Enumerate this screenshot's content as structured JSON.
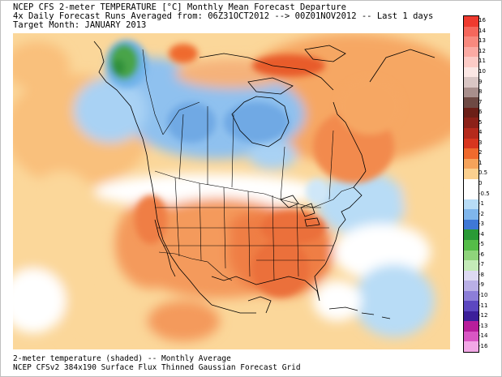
{
  "header": {
    "line1": "NCEP CFS 2-meter TEMPERATURE [°C] Monthly Mean Forecast Departure",
    "line2": "4x Daily Forecast Runs Averaged from: 06Z31OCT2012 --> 00Z01NOV2012 -- Last 1 days",
    "line3": "Target Month: JANUARY 2013"
  },
  "footer": {
    "line1": "2-meter temperature (shaded) -- Monthly Average",
    "line2": "NCEP CFSv2 384x190 Surface Flux Thinned Gaussian Forecast Grid"
  },
  "colorbar": {
    "labels": [
      "16",
      "14",
      "13",
      "12",
      "11",
      "10",
      "9",
      "8",
      "7",
      "6",
      "5",
      "4",
      "3",
      "2",
      "1",
      "0.5",
      "0",
      "-0.5",
      "-1",
      "-2",
      "-3",
      "-4",
      "-5",
      "-6",
      "-7",
      "-8",
      "-9",
      "-10",
      "-11",
      "-12",
      "-13",
      "-14",
      "-16"
    ],
    "colors": [
      "#ef3a2f",
      "#f5675c",
      "#f8897e",
      "#fbaaa3",
      "#fccbc6",
      "#fbe7e4",
      "#d9c6c4",
      "#a88f8c",
      "#6e4a44",
      "#6b1f17",
      "#8c2118",
      "#b52a1c",
      "#d8361f",
      "#ef6a2d",
      "#f5a35b",
      "#fbd08f",
      "#ffffff",
      "#ffffff",
      "#b7dcf6",
      "#7fb6ec",
      "#3f78d6",
      "#2a9a36",
      "#55bd48",
      "#8fd47b",
      "#c4eab8",
      "#ddd9f2",
      "#b9afe6",
      "#8c7ed8",
      "#5c47c0",
      "#3c1f9a",
      "#b81e9b",
      "#d957c4",
      "#f2a8e6"
    ]
  }
}
